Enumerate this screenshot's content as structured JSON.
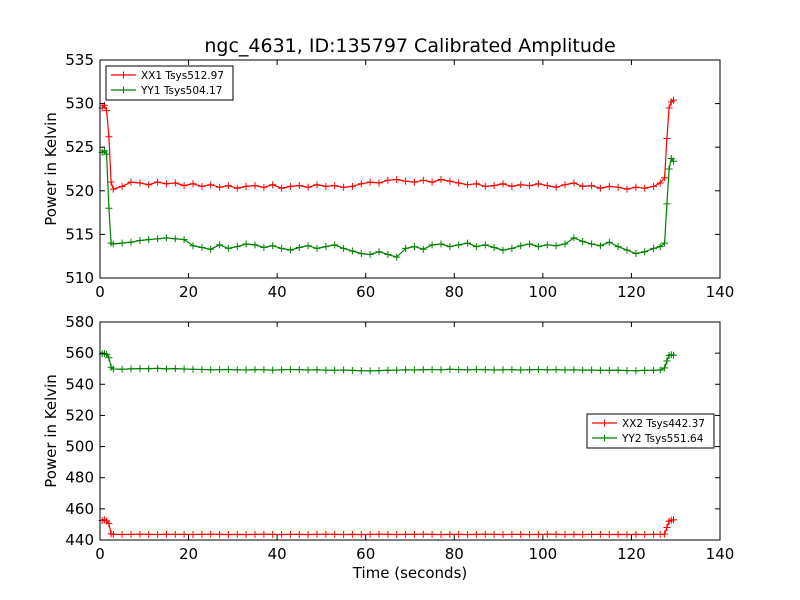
{
  "figure": {
    "title": "ngc_4631, ID:135797 Calibrated Amplitude",
    "xlabel": "Time (seconds)"
  },
  "chart_data": [
    {
      "type": "line",
      "panel": "top",
      "title": "ngc_4631, ID:135797 Calibrated Amplitude",
      "xlabel": "",
      "ylabel": "Power in Kelvin",
      "xlim": [
        0,
        140
      ],
      "ylim": [
        510,
        535
      ],
      "xticks": [
        0,
        20,
        40,
        60,
        80,
        100,
        120,
        140
      ],
      "yticks": [
        510,
        515,
        520,
        525,
        530,
        535
      ],
      "grid": false,
      "legend": "top-left",
      "marker": "+",
      "x": [
        0.5,
        1.0,
        1.5,
        2.0,
        2.5,
        3,
        5,
        7,
        9,
        11,
        13,
        15,
        17,
        19,
        21,
        23,
        25,
        27,
        29,
        31,
        33,
        35,
        37,
        39,
        41,
        43,
        45,
        47,
        49,
        51,
        53,
        55,
        57,
        59,
        61,
        63,
        65,
        67,
        69,
        71,
        73,
        75,
        77,
        79,
        81,
        83,
        85,
        87,
        89,
        91,
        93,
        95,
        97,
        99,
        101,
        103,
        105,
        107,
        109,
        111,
        113,
        115,
        117,
        119,
        121,
        123,
        125,
        126.5,
        127.5,
        128,
        128.5,
        129,
        129.5
      ],
      "series": [
        {
          "name": "XX1 Tsys512.97",
          "color": "#ff0000",
          "values": [
            529.5,
            529.8,
            529.2,
            526.2,
            521.0,
            520.2,
            520.5,
            521.0,
            520.9,
            520.7,
            521.0,
            520.8,
            520.9,
            520.6,
            520.8,
            520.5,
            520.7,
            520.4,
            520.6,
            520.3,
            520.5,
            520.6,
            520.4,
            520.7,
            520.3,
            520.5,
            520.6,
            520.4,
            520.7,
            520.5,
            520.6,
            520.4,
            520.5,
            520.8,
            521.0,
            520.9,
            521.2,
            521.3,
            521.1,
            521.0,
            521.2,
            521.0,
            521.3,
            521.1,
            520.9,
            520.7,
            520.8,
            520.5,
            520.6,
            520.8,
            520.5,
            520.7,
            520.6,
            520.8,
            520.6,
            520.4,
            520.7,
            520.9,
            520.5,
            520.6,
            520.3,
            520.5,
            520.4,
            520.2,
            520.4,
            520.3,
            520.5,
            520.9,
            521.5,
            526.0,
            529.5,
            530.2,
            530.4
          ]
        },
        {
          "name": "YY1 Tsys504.17",
          "color": "#008000",
          "values": [
            524.4,
            524.6,
            524.2,
            518.0,
            514.0,
            513.9,
            514.0,
            514.1,
            514.3,
            514.4,
            514.5,
            514.6,
            514.5,
            514.4,
            513.7,
            513.5,
            513.3,
            513.8,
            513.4,
            513.6,
            513.9,
            513.8,
            513.5,
            513.7,
            513.4,
            513.2,
            513.5,
            513.7,
            513.4,
            513.6,
            513.8,
            513.4,
            513.1,
            512.8,
            512.7,
            513.0,
            512.7,
            512.4,
            513.4,
            513.6,
            513.3,
            513.8,
            513.9,
            513.6,
            513.8,
            514.0,
            513.6,
            513.8,
            513.5,
            513.2,
            513.4,
            513.7,
            513.9,
            513.6,
            513.8,
            513.7,
            513.9,
            514.6,
            514.2,
            513.9,
            513.7,
            514.1,
            513.6,
            513.2,
            512.8,
            513.0,
            513.4,
            513.6,
            514.0,
            518.5,
            522.5,
            523.7,
            523.4
          ]
        }
      ]
    },
    {
      "type": "line",
      "panel": "bottom",
      "title": "",
      "xlabel": "Time (seconds)",
      "ylabel": "Power in Kelvin",
      "xlim": [
        0,
        140
      ],
      "ylim": [
        440,
        580
      ],
      "xticks": [
        0,
        20,
        40,
        60,
        80,
        100,
        120,
        140
      ],
      "yticks": [
        440,
        460,
        480,
        500,
        520,
        540,
        560,
        580
      ],
      "grid": false,
      "legend": "center-right",
      "marker": "+",
      "x": [
        0.5,
        1.0,
        1.5,
        2.0,
        2.5,
        3,
        5,
        7,
        9,
        11,
        13,
        15,
        17,
        19,
        21,
        23,
        25,
        27,
        29,
        31,
        33,
        35,
        37,
        39,
        41,
        43,
        45,
        47,
        49,
        51,
        53,
        55,
        57,
        59,
        61,
        63,
        65,
        67,
        69,
        71,
        73,
        75,
        77,
        79,
        81,
        83,
        85,
        87,
        89,
        91,
        93,
        95,
        97,
        99,
        101,
        103,
        105,
        107,
        109,
        111,
        113,
        115,
        117,
        119,
        121,
        123,
        125,
        126.5,
        127.5,
        128,
        128.5,
        129,
        129.5
      ],
      "series": [
        {
          "name": "XX2 Tsys442.37",
          "color": "#ff0000",
          "values": [
            452.5,
            453.0,
            452.2,
            450.5,
            444.0,
            443.6,
            443.5,
            443.6,
            443.7,
            443.6,
            443.5,
            443.7,
            443.6,
            443.6,
            443.5,
            443.6,
            443.7,
            443.6,
            443.5,
            443.6,
            443.5,
            443.6,
            443.7,
            443.6,
            443.5,
            443.6,
            443.6,
            443.5,
            443.6,
            443.7,
            443.6,
            443.5,
            443.6,
            443.5,
            443.6,
            443.7,
            443.6,
            443.5,
            443.6,
            443.6,
            443.7,
            443.6,
            443.5,
            443.6,
            443.6,
            443.5,
            443.6,
            443.7,
            443.6,
            443.5,
            443.6,
            443.6,
            443.5,
            443.6,
            443.7,
            443.6,
            443.5,
            443.6,
            443.5,
            443.6,
            443.6,
            443.5,
            443.6,
            443.5,
            443.6,
            443.5,
            443.6,
            443.6,
            443.8,
            448.0,
            452.0,
            452.8,
            453.0
          ]
        },
        {
          "name": "YY2 Tsys551.64",
          "color": "#008000",
          "values": [
            559.5,
            559.8,
            559.2,
            557.0,
            551.0,
            549.8,
            549.7,
            549.9,
            550.1,
            550.0,
            550.2,
            549.9,
            550.1,
            549.8,
            549.6,
            549.5,
            549.3,
            549.4,
            549.5,
            549.3,
            549.2,
            549.4,
            549.3,
            549.1,
            549.3,
            549.5,
            549.4,
            549.2,
            549.3,
            549.1,
            549.0,
            549.2,
            548.9,
            548.7,
            548.6,
            548.8,
            549.0,
            549.1,
            549.3,
            549.2,
            549.4,
            549.5,
            549.3,
            549.6,
            549.4,
            549.3,
            549.5,
            549.4,
            549.2,
            549.3,
            549.4,
            549.2,
            549.3,
            549.5,
            549.3,
            549.4,
            549.2,
            549.3,
            549.1,
            549.2,
            549.0,
            548.9,
            549.1,
            548.8,
            548.7,
            548.9,
            549.0,
            549.2,
            550.5,
            555.0,
            558.5,
            559.0,
            558.7
          ]
        }
      ]
    }
  ]
}
